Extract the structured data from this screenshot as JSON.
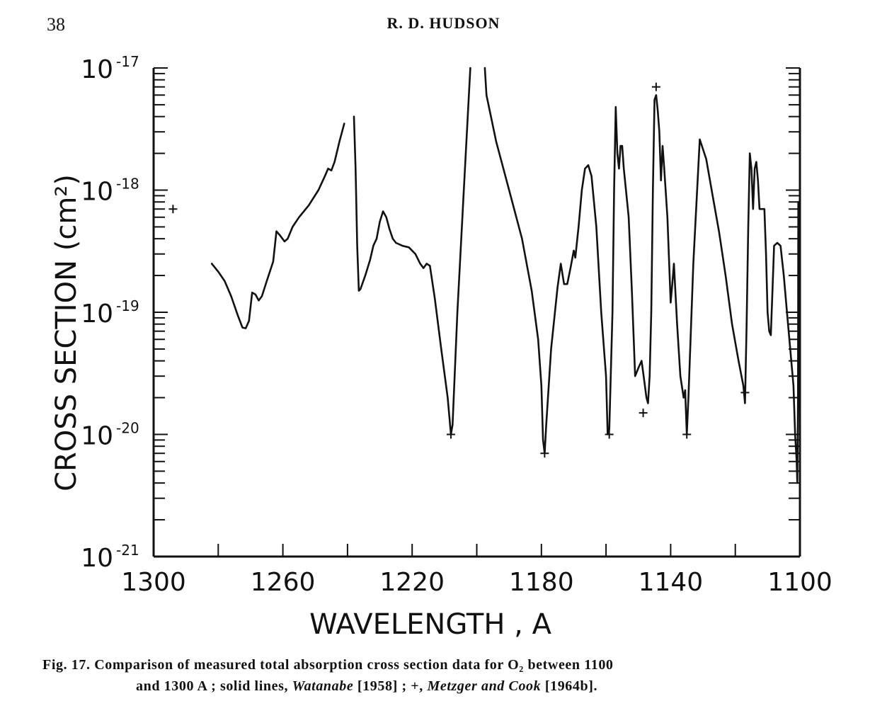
{
  "page": {
    "number": "38",
    "header": "R. D. HUDSON"
  },
  "caption": {
    "label": "Fig. 17.",
    "text_line1": "Comparison of measured total absorption cross section data for O₂ between 1100",
    "text_line2_a": "and 1300 A ; solid lines, ",
    "ref1_name": "Watanabe",
    "ref1_year": " [1958] ; +, ",
    "ref2_name": "Metzger and Cook",
    "ref2_year": " [1964b]."
  },
  "chart_data": {
    "type": "line",
    "title": "",
    "xlabel": "WAVELENGTH , A",
    "ylabel": "CROSS SECTION (cm²)",
    "xlim": [
      1300,
      1100
    ],
    "x_reversed": true,
    "ylim": [
      1e-21,
      1e-17
    ],
    "y_scale": "log",
    "x_tick_labels": [
      {
        "value": 1300,
        "label": "1300"
      },
      {
        "value": 1260,
        "label": "1260"
      },
      {
        "value": 1220,
        "label": "1220"
      },
      {
        "value": 1180,
        "label": "1180"
      },
      {
        "value": 1140,
        "label": "1140"
      },
      {
        "value": 1100,
        "label": "1100"
      }
    ],
    "y_tick_labels": [
      {
        "value": 1e-17,
        "mantissa": "10",
        "exponent": "-17"
      },
      {
        "value": 1e-18,
        "mantissa": "10",
        "exponent": "-18"
      },
      {
        "value": 1e-19,
        "mantissa": "10",
        "exponent": "-19"
      },
      {
        "value": 1e-20,
        "mantissa": "10",
        "exponent": "-20"
      },
      {
        "value": 1e-21,
        "mantissa": "10",
        "exponent": "-21"
      }
    ],
    "series": [
      {
        "name": "Watanabe [1958]",
        "style": "solid-line",
        "segments": [
          [
            [
              1282,
              2.5e-19
            ],
            [
              1280,
              2.15e-19
            ],
            [
              1278,
              1.8e-19
            ],
            [
              1276,
              1.35e-19
            ],
            [
              1274,
              9.5e-20
            ],
            [
              1272.5,
              7.5e-20
            ],
            [
              1271.5,
              7.4e-20
            ],
            [
              1270.5,
              8.5e-20
            ],
            [
              1269.5,
              1.45e-19
            ],
            [
              1268.5,
              1.4e-19
            ],
            [
              1267.5,
              1.25e-19
            ],
            [
              1266.5,
              1.35e-19
            ],
            [
              1265,
              1.8e-19
            ],
            [
              1263,
              2.6e-19
            ],
            [
              1262,
              4.6e-19
            ],
            [
              1261,
              4.3e-19
            ],
            [
              1259.5,
              3.8e-19
            ],
            [
              1258.5,
              4e-19
            ],
            [
              1257,
              5e-19
            ],
            [
              1255,
              6e-19
            ],
            [
              1252,
              7.5e-19
            ],
            [
              1249,
              1e-18
            ],
            [
              1247,
              1.3e-18
            ],
            [
              1246,
              1.5e-18
            ],
            [
              1245,
              1.45e-18
            ],
            [
              1244,
              1.7e-18
            ],
            [
              1242.5,
              2.5e-18
            ],
            [
              1241,
              3.5e-18
            ]
          ],
          [
            [
              1238,
              4e-18
            ],
            [
              1237.5,
              1.5e-18
            ],
            [
              1237,
              3.5e-19
            ],
            [
              1236.5,
              1.5e-19
            ],
            [
              1236,
              1.55e-19
            ],
            [
              1234.5,
              2e-19
            ],
            [
              1233,
              2.7e-19
            ],
            [
              1232,
              3.5e-19
            ],
            [
              1231,
              4e-19
            ],
            [
              1230,
              5.5e-19
            ],
            [
              1229,
              6.7e-19
            ],
            [
              1228,
              6e-19
            ],
            [
              1227,
              4.8e-19
            ],
            [
              1226,
              4e-19
            ],
            [
              1225,
              3.7e-19
            ],
            [
              1223,
              3.5e-19
            ],
            [
              1221,
              3.4e-19
            ],
            [
              1219,
              3e-19
            ],
            [
              1217.5,
              2.5e-19
            ],
            [
              1216.5,
              2.3e-19
            ],
            [
              1215.5,
              2.5e-19
            ],
            [
              1214.5,
              2.4e-19
            ],
            [
              1213,
              1.3e-19
            ],
            [
              1211,
              5e-20
            ],
            [
              1209,
              2e-20
            ],
            [
              1208,
              1e-20
            ],
            [
              1207.5,
              1.2e-20
            ],
            [
              1206,
              1e-19
            ],
            [
              1204,
              1e-18
            ],
            [
              1202,
              1e-17
            ]
          ],
          [
            [
              1197.5,
              1e-17
            ],
            [
              1197,
              6e-18
            ],
            [
              1194,
              2.5e-18
            ],
            [
              1190,
              1e-18
            ],
            [
              1186,
              4e-19
            ],
            [
              1183,
              1.5e-19
            ],
            [
              1181,
              6e-20
            ],
            [
              1180,
              2.5e-20
            ],
            [
              1179.5,
              9e-21
            ],
            [
              1179,
              7e-21
            ],
            [
              1178.5,
              1.2e-20
            ],
            [
              1177,
              5e-20
            ],
            [
              1175,
              1.6e-19
            ],
            [
              1174,
              2.5e-19
            ],
            [
              1173,
              1.7e-19
            ],
            [
              1172,
              1.7e-19
            ],
            [
              1171,
              2.3e-19
            ],
            [
              1170,
              3.2e-19
            ],
            [
              1169.5,
              2.8e-19
            ],
            [
              1168.5,
              5e-19
            ],
            [
              1167.5,
              1e-18
            ],
            [
              1166.5,
              1.5e-18
            ],
            [
              1165.5,
              1.6e-18
            ],
            [
              1164.5,
              1.3e-18
            ],
            [
              1163,
              5e-19
            ],
            [
              1161.5,
              1e-19
            ],
            [
              1160,
              3e-20
            ],
            [
              1159.5,
              1e-20
            ],
            [
              1159,
              1.1e-20
            ],
            [
              1158,
              1e-19
            ],
            [
              1157.5,
              1e-18
            ],
            [
              1157,
              4.8e-18
            ],
            [
              1156.5,
              2e-18
            ],
            [
              1156,
              1.5e-18
            ],
            [
              1155.5,
              2.3e-18
            ],
            [
              1155,
              2.3e-18
            ],
            [
              1154.5,
              1.5e-18
            ],
            [
              1153,
              6e-19
            ],
            [
              1152,
              1.5e-19
            ],
            [
              1151,
              3e-20
            ],
            [
              1150,
              3.5e-20
            ],
            [
              1149,
              4e-20
            ],
            [
              1148.5,
              3.2e-20
            ],
            [
              1147.5,
              2e-20
            ],
            [
              1147,
              1.8e-20
            ],
            [
              1146.5,
              3e-20
            ],
            [
              1146,
              1e-19
            ],
            [
              1145.5,
              1e-18
            ],
            [
              1145,
              5.5e-18
            ],
            [
              1144.5,
              6e-18
            ],
            [
              1144,
              4.5e-18
            ],
            [
              1143.5,
              3e-18
            ],
            [
              1143,
              1.2e-18
            ],
            [
              1142.5,
              2.3e-18
            ],
            [
              1142,
              1.5e-18
            ],
            [
              1141,
              6e-19
            ],
            [
              1140,
              1.2e-19
            ],
            [
              1139.5,
              1.7e-19
            ],
            [
              1139,
              2.5e-19
            ],
            [
              1138,
              8e-20
            ],
            [
              1137,
              3e-20
            ],
            [
              1136,
              2e-20
            ],
            [
              1135.5,
              2.3e-20
            ],
            [
              1135,
              1e-20
            ],
            [
              1134.5,
              2e-20
            ],
            [
              1133,
              2.5e-19
            ],
            [
              1131,
              2.6e-18
            ],
            [
              1129,
              1.8e-18
            ],
            [
              1127,
              9e-19
            ],
            [
              1125,
              4.5e-19
            ],
            [
              1123,
              2e-19
            ],
            [
              1121,
              8e-20
            ],
            [
              1119,
              4e-20
            ],
            [
              1117.5,
              2.5e-20
            ],
            [
              1117,
              1.8e-20
            ],
            [
              1116.5,
              8e-20
            ],
            [
              1116,
              5e-19
            ],
            [
              1115.5,
              2e-18
            ],
            [
              1115,
              1.5e-18
            ],
            [
              1114.5,
              7e-19
            ],
            [
              1114,
              1.5e-18
            ],
            [
              1113.5,
              1.7e-18
            ],
            [
              1113,
              1.2e-18
            ],
            [
              1112.5,
              7e-19
            ],
            [
              1112,
              7e-19
            ],
            [
              1111,
              7e-19
            ],
            [
              1110.5,
              3e-19
            ],
            [
              1110,
              1e-19
            ],
            [
              1109.5,
              7e-20
            ],
            [
              1109,
              6.5e-20
            ],
            [
              1108.5,
              1.5e-19
            ],
            [
              1108,
              3.5e-19
            ],
            [
              1107,
              3.7e-19
            ],
            [
              1106,
              3.5e-19
            ],
            [
              1105,
              2e-19
            ],
            [
              1104,
              1e-19
            ],
            [
              1103,
              5e-20
            ],
            [
              1102,
              2.5e-20
            ],
            [
              1101.5,
              1e-20
            ],
            [
              1101,
              6e-21
            ],
            [
              1100.8,
              4e-21
            ],
            [
              1100.6,
              2e-20
            ],
            [
              1100.5,
              8e-19
            ],
            [
              1100.2,
              5e-19
            ],
            [
              1100,
              1e-18
            ]
          ]
        ]
      },
      {
        "name": "Metzger and Cook [1964b]",
        "style": "plus-marker",
        "points": [
          [
            1294,
            7e-19
          ],
          [
            1208,
            1e-20
          ],
          [
            1179,
            7e-21
          ],
          [
            1159,
            1e-20
          ],
          [
            1148.5,
            1.5e-20
          ],
          [
            1144.5,
            7e-18
          ],
          [
            1135,
            1e-20
          ],
          [
            1117,
            2.2e-20
          ],
          [
            1101,
            7e-21
          ]
        ]
      }
    ],
    "grid": false
  }
}
